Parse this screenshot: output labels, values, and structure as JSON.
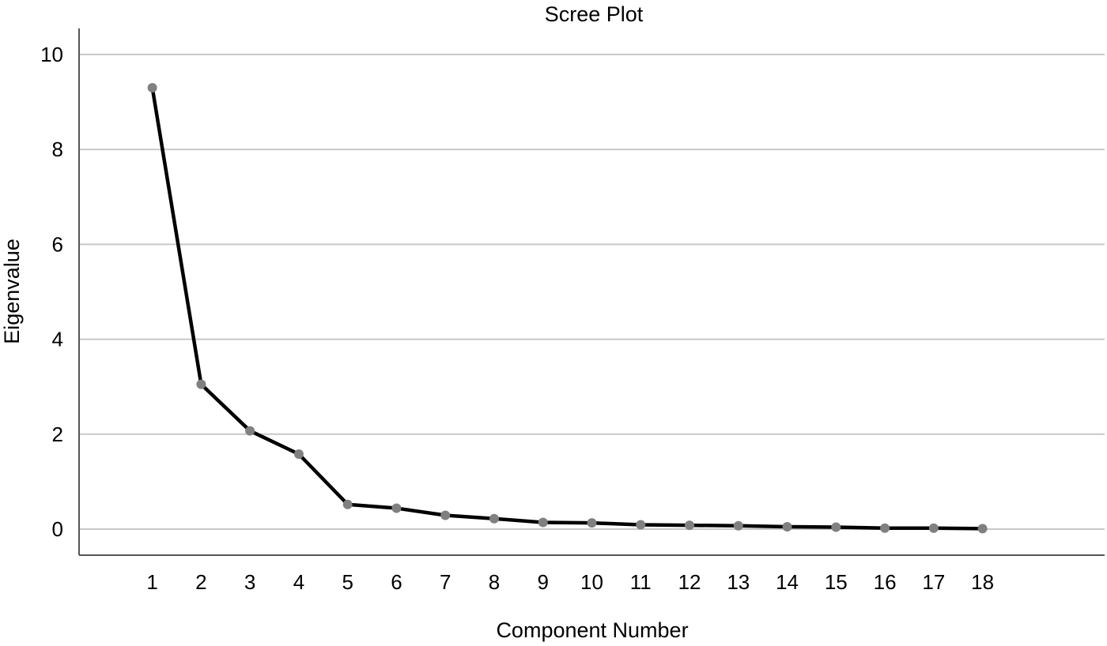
{
  "chart_data": {
    "type": "line",
    "title": "Scree Plot",
    "xlabel": "Component Number",
    "ylabel": "Eigenvalue",
    "x": [
      1,
      2,
      3,
      4,
      5,
      6,
      7,
      8,
      9,
      10,
      11,
      12,
      13,
      14,
      15,
      16,
      17,
      18
    ],
    "x_tick_labels": [
      "1",
      "2",
      "3",
      "4",
      "5",
      "6",
      "7",
      "8",
      "9",
      "10",
      "11",
      "12",
      "13",
      "14",
      "15",
      "16",
      "17",
      "18"
    ],
    "y_ticks": [
      0,
      2,
      4,
      6,
      8,
      10
    ],
    "y_tick_labels": [
      "0",
      "2",
      "4",
      "6",
      "8",
      "10"
    ],
    "ylim": [
      -0.55,
      10.55
    ],
    "xlim": [
      -0.5,
      20.5
    ],
    "grid": "horizontal",
    "series": [
      {
        "values": [
          9.3,
          3.05,
          2.07,
          1.58,
          0.52,
          0.44,
          0.29,
          0.22,
          0.14,
          0.13,
          0.09,
          0.08,
          0.07,
          0.05,
          0.04,
          0.02,
          0.02,
          0.01
        ]
      }
    ],
    "colors": {
      "line": "#000000",
      "marker": "#808080",
      "grid": "#c8c8c8",
      "axis": "#555555"
    }
  }
}
